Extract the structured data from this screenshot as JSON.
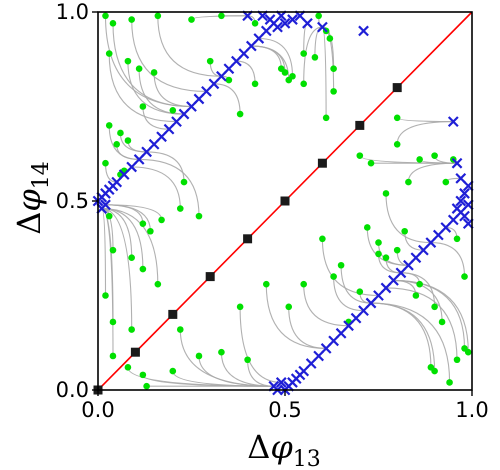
{
  "chart_data": {
    "type": "scatter",
    "title": "",
    "xlabel": {
      "base": "Δ",
      "symbol": "φ",
      "sub": "13"
    },
    "ylabel": {
      "base": "Δ",
      "symbol": "φ",
      "sub": "14"
    },
    "xlim": [
      0.0,
      1.0
    ],
    "ylim": [
      0.0,
      1.0
    ],
    "xticks": [
      0.0,
      0.5,
      1.0
    ],
    "yticks": [
      0.0,
      0.5,
      1.0
    ],
    "xtick_labels": [
      "0.0",
      "0.5",
      "1.0"
    ],
    "ytick_labels": [
      "0.0",
      "0.5",
      "1.0"
    ],
    "grid": false,
    "legend": "none",
    "colors": {
      "diagonal": "#ff0000",
      "trajectory": "#a9a9a9",
      "start_point": "#00e000",
      "end_point": "#1f1fd6",
      "fixed_point": "#1a1a1a"
    },
    "series": [
      {
        "marker": "line",
        "color": "#ff0000",
        "points": [
          [
            0,
            0
          ],
          [
            1,
            1
          ]
        ]
      },
      {
        "marker": "square",
        "color": "#1a1a1a",
        "points": [
          [
            0.0,
            0.0
          ],
          [
            0.1,
            0.1
          ],
          [
            0.2,
            0.2
          ],
          [
            0.3,
            0.3
          ],
          [
            0.4,
            0.4
          ],
          [
            0.5,
            0.5
          ],
          [
            0.6,
            0.6
          ],
          [
            0.7,
            0.7
          ],
          [
            0.8,
            0.8
          ]
        ]
      },
      {
        "marker": "circle",
        "color": "#00e000",
        "points": [
          [
            0.02,
            0.99
          ],
          [
            0.04,
            0.97
          ],
          [
            0.09,
            0.98
          ],
          [
            0.16,
            0.99
          ],
          [
            0.25,
            0.98
          ],
          [
            0.33,
            0.99
          ],
          [
            0.42,
            0.97
          ],
          [
            0.03,
            0.89
          ],
          [
            0.08,
            0.87
          ],
          [
            0.11,
            0.85
          ],
          [
            0.15,
            0.84
          ],
          [
            0.12,
            0.75
          ],
          [
            0.2,
            0.74
          ],
          [
            0.3,
            0.87
          ],
          [
            0.35,
            0.82
          ],
          [
            0.42,
            0.81
          ],
          [
            0.38,
            0.73
          ],
          [
            0.03,
            0.7
          ],
          [
            0.06,
            0.68
          ],
          [
            0.05,
            0.65
          ],
          [
            0.08,
            0.66
          ],
          [
            0.02,
            0.6
          ],
          [
            0.07,
            0.58
          ],
          [
            0.06,
            0.57
          ],
          [
            0.23,
            0.55
          ],
          [
            0.12,
            0.44
          ],
          [
            0.14,
            0.42
          ],
          [
            0.17,
            0.45
          ],
          [
            0.22,
            0.48
          ],
          [
            0.27,
            0.46
          ],
          [
            0.03,
            0.46
          ],
          [
            0.04,
            0.37
          ],
          [
            0.09,
            0.35
          ],
          [
            0.12,
            0.32
          ],
          [
            0.16,
            0.28
          ],
          [
            0.02,
            0.25
          ],
          [
            0.04,
            0.18
          ],
          [
            0.09,
            0.16
          ],
          [
            0.04,
            0.09
          ],
          [
            0.08,
            0.06
          ],
          [
            0.12,
            0.04
          ],
          [
            0.2,
            0.05
          ],
          [
            0.13,
            0.01
          ],
          [
            0.27,
            0.09
          ],
          [
            0.33,
            0.1
          ],
          [
            0.4,
            0.08
          ],
          [
            0.22,
            0.16
          ],
          [
            0.38,
            0.22
          ],
          [
            0.49,
            0.85
          ],
          [
            0.5,
            0.84
          ],
          [
            0.52,
            0.83
          ],
          [
            0.51,
            0.82
          ],
          [
            0.55,
            0.81
          ],
          [
            0.58,
            0.88
          ],
          [
            0.63,
            0.85
          ],
          [
            0.61,
            0.72
          ],
          [
            0.63,
            0.79
          ],
          [
            0.7,
            0.62
          ],
          [
            0.73,
            0.6
          ],
          [
            0.8,
            0.65
          ],
          [
            0.55,
            0.89
          ],
          [
            0.59,
            0.99
          ],
          [
            0.61,
            0.95
          ],
          [
            0.62,
            0.93
          ],
          [
            0.72,
            0.43
          ],
          [
            0.75,
            0.39
          ],
          [
            0.77,
            0.35
          ],
          [
            0.85,
            0.25
          ],
          [
            0.86,
            0.28
          ],
          [
            0.9,
            0.22
          ],
          [
            0.92,
            0.18
          ],
          [
            0.89,
            0.06
          ],
          [
            0.9,
            0.05
          ],
          [
            0.96,
            0.08
          ],
          [
            0.98,
            0.11
          ],
          [
            0.99,
            0.1
          ],
          [
            0.82,
            0.42
          ],
          [
            0.8,
            0.37
          ],
          [
            0.77,
            0.52
          ],
          [
            0.75,
            0.36
          ],
          [
            0.65,
            0.33
          ],
          [
            0.6,
            0.4
          ],
          [
            0.63,
            0.3
          ],
          [
            0.7,
            0.26
          ],
          [
            0.67,
            0.18
          ],
          [
            0.83,
            0.55
          ],
          [
            0.86,
            0.61
          ],
          [
            0.9,
            0.62
          ],
          [
            0.8,
            0.72
          ],
          [
            0.55,
            0.28
          ],
          [
            0.45,
            0.28
          ],
          [
            0.51,
            0.22
          ],
          [
            0.95,
            0.61
          ],
          [
            0.96,
            0.4
          ],
          [
            0.98,
            0.3
          ],
          [
            0.94,
            0.02
          ],
          [
            0.93,
            0.55
          ]
        ]
      },
      {
        "marker": "x",
        "color": "#1f1fd6",
        "points": [
          [
            0.0,
            0.5
          ],
          [
            0.01,
            0.51
          ],
          [
            0.02,
            0.52
          ],
          [
            0.03,
            0.53
          ],
          [
            0.04,
            0.54
          ],
          [
            0.05,
            0.55
          ],
          [
            0.07,
            0.57
          ],
          [
            0.09,
            0.59
          ],
          [
            0.11,
            0.61
          ],
          [
            0.13,
            0.63
          ],
          [
            0.15,
            0.65
          ],
          [
            0.17,
            0.67
          ],
          [
            0.19,
            0.69
          ],
          [
            0.21,
            0.71
          ],
          [
            0.23,
            0.73
          ],
          [
            0.25,
            0.75
          ],
          [
            0.27,
            0.77
          ],
          [
            0.29,
            0.79
          ],
          [
            0.31,
            0.81
          ],
          [
            0.33,
            0.83
          ],
          [
            0.35,
            0.85
          ],
          [
            0.37,
            0.87
          ],
          [
            0.39,
            0.89
          ],
          [
            0.41,
            0.91
          ],
          [
            0.43,
            0.93
          ],
          [
            0.45,
            0.95
          ],
          [
            0.47,
            0.97
          ],
          [
            0.49,
            0.99
          ],
          [
            0.44,
            0.99
          ],
          [
            0.46,
            0.98
          ],
          [
            0.48,
            0.96
          ],
          [
            0.5,
            0.97
          ],
          [
            0.52,
            0.98
          ],
          [
            0.54,
            0.99
          ],
          [
            0.56,
            0.97
          ],
          [
            0.6,
            0.96
          ],
          [
            0.71,
            0.95
          ],
          [
            0.4,
            0.99
          ],
          [
            0.5,
            0.0
          ],
          [
            0.51,
            0.01
          ],
          [
            0.52,
            0.02
          ],
          [
            0.53,
            0.03
          ],
          [
            0.54,
            0.04
          ],
          [
            0.55,
            0.05
          ],
          [
            0.57,
            0.07
          ],
          [
            0.59,
            0.09
          ],
          [
            0.61,
            0.11
          ],
          [
            0.63,
            0.13
          ],
          [
            0.65,
            0.15
          ],
          [
            0.67,
            0.17
          ],
          [
            0.69,
            0.19
          ],
          [
            0.71,
            0.21
          ],
          [
            0.73,
            0.23
          ],
          [
            0.75,
            0.25
          ],
          [
            0.77,
            0.27
          ],
          [
            0.79,
            0.29
          ],
          [
            0.81,
            0.31
          ],
          [
            0.83,
            0.33
          ],
          [
            0.85,
            0.35
          ],
          [
            0.87,
            0.37
          ],
          [
            0.89,
            0.39
          ],
          [
            0.91,
            0.41
          ],
          [
            0.93,
            0.43
          ],
          [
            0.95,
            0.45
          ],
          [
            0.97,
            0.47
          ],
          [
            0.99,
            0.49
          ],
          [
            0.99,
            0.44
          ],
          [
            0.98,
            0.46
          ],
          [
            0.96,
            0.48
          ],
          [
            0.97,
            0.5
          ],
          [
            0.98,
            0.52
          ],
          [
            0.99,
            0.54
          ],
          [
            0.97,
            0.56
          ],
          [
            0.96,
            0.6
          ],
          [
            0.95,
            0.71
          ],
          [
            0.47,
            0.01
          ],
          [
            0.49,
            0.02
          ],
          [
            0.48,
            0.0
          ],
          [
            0.01,
            0.48
          ],
          [
            0.02,
            0.49
          ]
        ]
      }
    ]
  }
}
